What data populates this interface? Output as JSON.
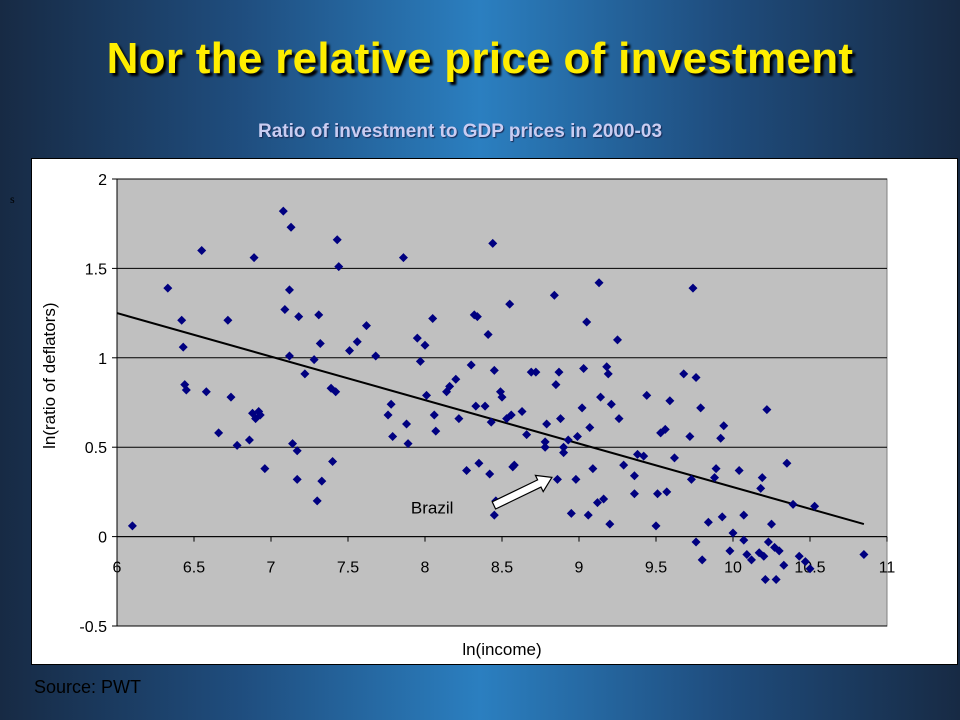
{
  "slide": {
    "title": "Nor the relative price of investment",
    "stray_mark": "s",
    "source": "Source: PWT"
  },
  "colors": {
    "marker": "#000080",
    "plot_background": "#c0c0c0",
    "title": "#ffee00"
  },
  "chart_data": {
    "type": "scatter",
    "title": "Ratio of investment to GDP prices in 2000-03",
    "xlabel": "ln(income)",
    "ylabel": "ln(ratio of deflators)",
    "xlim": [
      6,
      11
    ],
    "ylim": [
      -0.5,
      2
    ],
    "xticks": [
      "6",
      "6.5",
      "7",
      "7.5",
      "8",
      "8.5",
      "9",
      "9.5",
      "10",
      "10.5",
      "11"
    ],
    "yticks": [
      "-0.5",
      "0",
      "0.5",
      "1",
      "1.5",
      "2"
    ],
    "grid": "horizontal",
    "trendline": {
      "x": [
        6.0,
        10.85
      ],
      "y": [
        1.25,
        0.07
      ]
    },
    "annotation": {
      "text": "Brazil",
      "x": 8.85,
      "y": 0.32
    },
    "points": [
      [
        6.1,
        0.06
      ],
      [
        6.33,
        1.39
      ],
      [
        6.42,
        1.21
      ],
      [
        6.43,
        1.06
      ],
      [
        6.44,
        0.85
      ],
      [
        6.45,
        0.82
      ],
      [
        6.55,
        1.6
      ],
      [
        6.58,
        0.81
      ],
      [
        6.66,
        0.58
      ],
      [
        6.72,
        1.21
      ],
      [
        6.74,
        0.78
      ],
      [
        6.78,
        0.51
      ],
      [
        6.86,
        0.54
      ],
      [
        6.89,
        1.56
      ],
      [
        6.88,
        0.69
      ],
      [
        6.9,
        0.66
      ],
      [
        6.92,
        0.7
      ],
      [
        6.93,
        0.68
      ],
      [
        6.96,
        0.38
      ],
      [
        7.08,
        1.82
      ],
      [
        7.09,
        1.27
      ],
      [
        7.12,
        1.38
      ],
      [
        7.13,
        1.73
      ],
      [
        7.12,
        1.01
      ],
      [
        7.14,
        0.52
      ],
      [
        7.17,
        0.48
      ],
      [
        7.18,
        1.23
      ],
      [
        7.17,
        0.32
      ],
      [
        7.22,
        0.91
      ],
      [
        7.28,
        0.99
      ],
      [
        7.3,
        0.2
      ],
      [
        7.31,
        1.24
      ],
      [
        7.32,
        1.08
      ],
      [
        7.33,
        0.31
      ],
      [
        7.39,
        0.83
      ],
      [
        7.4,
        0.42
      ],
      [
        7.42,
        0.81
      ],
      [
        7.43,
        1.66
      ],
      [
        7.44,
        1.51
      ],
      [
        7.51,
        1.04
      ],
      [
        7.56,
        1.09
      ],
      [
        7.62,
        1.18
      ],
      [
        7.68,
        1.01
      ],
      [
        7.76,
        0.68
      ],
      [
        7.78,
        0.74
      ],
      [
        7.79,
        0.56
      ],
      [
        7.86,
        1.56
      ],
      [
        7.88,
        0.63
      ],
      [
        7.89,
        0.52
      ],
      [
        7.95,
        1.11
      ],
      [
        7.97,
        0.98
      ],
      [
        8.0,
        1.07
      ],
      [
        8.01,
        0.79
      ],
      [
        8.05,
        1.22
      ],
      [
        8.06,
        0.68
      ],
      [
        8.07,
        0.59
      ],
      [
        8.14,
        0.81
      ],
      [
        8.16,
        0.84
      ],
      [
        8.2,
        0.88
      ],
      [
        8.22,
        0.66
      ],
      [
        8.27,
        0.37
      ],
      [
        8.3,
        0.96
      ],
      [
        8.32,
        1.24
      ],
      [
        8.33,
        0.73
      ],
      [
        8.34,
        1.23
      ],
      [
        8.35,
        0.41
      ],
      [
        8.39,
        0.73
      ],
      [
        8.41,
        1.13
      ],
      [
        8.42,
        0.35
      ],
      [
        8.43,
        0.64
      ],
      [
        8.44,
        1.64
      ],
      [
        8.45,
        0.93
      ],
      [
        8.45,
        0.12
      ],
      [
        8.46,
        0.2
      ],
      [
        8.49,
        0.81
      ],
      [
        8.5,
        0.78
      ],
      [
        8.53,
        0.66
      ],
      [
        8.55,
        1.3
      ],
      [
        8.56,
        0.68
      ],
      [
        8.57,
        0.39
      ],
      [
        8.58,
        0.4
      ],
      [
        8.63,
        0.7
      ],
      [
        8.66,
        0.57
      ],
      [
        8.69,
        0.92
      ],
      [
        8.72,
        0.92
      ],
      [
        8.78,
        0.5
      ],
      [
        8.78,
        0.53
      ],
      [
        8.79,
        0.63
      ],
      [
        8.84,
        1.35
      ],
      [
        8.85,
        0.85
      ],
      [
        8.86,
        0.32
      ],
      [
        8.87,
        0.92
      ],
      [
        8.88,
        0.66
      ],
      [
        8.9,
        0.47
      ],
      [
        8.9,
        0.5
      ],
      [
        8.93,
        0.54
      ],
      [
        8.95,
        0.13
      ],
      [
        8.98,
        0.32
      ],
      [
        8.99,
        0.56
      ],
      [
        9.02,
        0.72
      ],
      [
        9.03,
        0.94
      ],
      [
        9.05,
        1.2
      ],
      [
        9.06,
        0.12
      ],
      [
        9.07,
        0.61
      ],
      [
        9.09,
        0.38
      ],
      [
        9.12,
        0.19
      ],
      [
        9.13,
        1.42
      ],
      [
        9.14,
        0.78
      ],
      [
        9.16,
        0.21
      ],
      [
        9.18,
        0.95
      ],
      [
        9.19,
        0.91
      ],
      [
        9.2,
        0.07
      ],
      [
        9.21,
        0.74
      ],
      [
        9.25,
        1.1
      ],
      [
        9.26,
        0.66
      ],
      [
        9.29,
        0.4
      ],
      [
        9.36,
        0.34
      ],
      [
        9.36,
        0.24
      ],
      [
        9.38,
        0.46
      ],
      [
        9.42,
        0.45
      ],
      [
        9.44,
        0.79
      ],
      [
        9.5,
        0.06
      ],
      [
        9.51,
        0.24
      ],
      [
        9.53,
        0.58
      ],
      [
        9.56,
        0.6
      ],
      [
        9.57,
        0.25
      ],
      [
        9.59,
        0.76
      ],
      [
        9.62,
        0.44
      ],
      [
        9.68,
        0.91
      ],
      [
        9.72,
        0.56
      ],
      [
        9.73,
        0.32
      ],
      [
        9.74,
        1.39
      ],
      [
        9.76,
        -0.03
      ],
      [
        9.76,
        0.89
      ],
      [
        9.79,
        0.72
      ],
      [
        9.8,
        -0.13
      ],
      [
        9.84,
        0.08
      ],
      [
        9.89,
        0.38
      ],
      [
        9.88,
        0.33
      ],
      [
        9.92,
        0.55
      ],
      [
        9.93,
        0.11
      ],
      [
        9.94,
        0.62
      ],
      [
        9.98,
        -0.08
      ],
      [
        10.0,
        0.02
      ],
      [
        10.04,
        0.37
      ],
      [
        10.07,
        -0.02
      ],
      [
        10.07,
        0.12
      ],
      [
        10.09,
        -0.1
      ],
      [
        10.12,
        -0.13
      ],
      [
        10.17,
        -0.09
      ],
      [
        10.18,
        0.27
      ],
      [
        10.19,
        0.33
      ],
      [
        10.2,
        -0.11
      ],
      [
        10.21,
        -0.24
      ],
      [
        10.22,
        0.71
      ],
      [
        10.23,
        -0.03
      ],
      [
        10.25,
        0.07
      ],
      [
        10.27,
        -0.06
      ],
      [
        10.28,
        -0.24
      ],
      [
        10.3,
        -0.08
      ],
      [
        10.33,
        -0.16
      ],
      [
        10.35,
        0.41
      ],
      [
        10.39,
        0.18
      ],
      [
        10.43,
        -0.11
      ],
      [
        10.47,
        -0.14
      ],
      [
        10.5,
        -0.18
      ],
      [
        10.53,
        0.17
      ],
      [
        10.85,
        -0.1
      ]
    ]
  }
}
